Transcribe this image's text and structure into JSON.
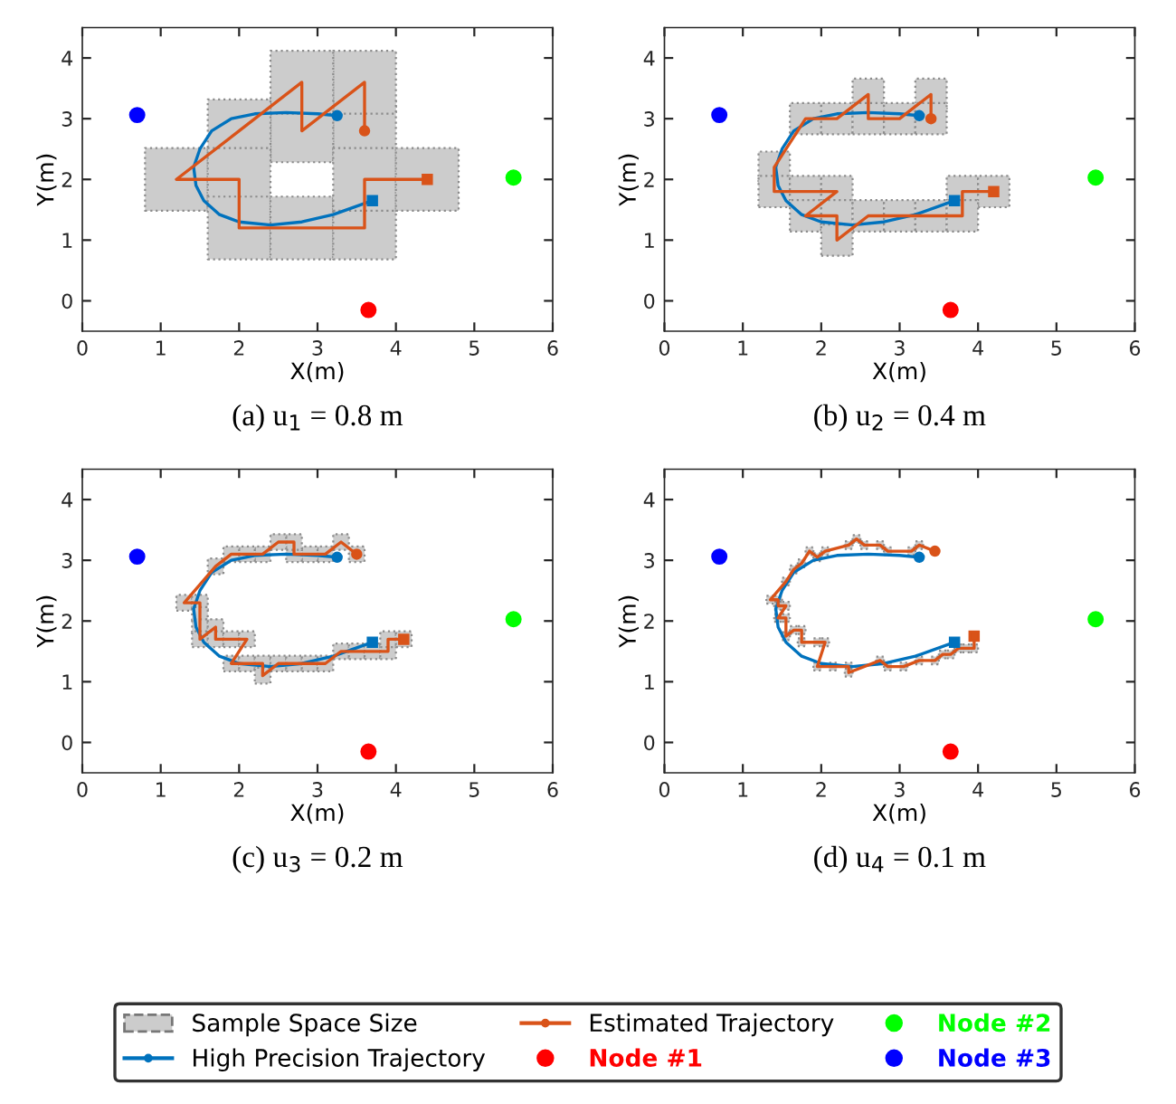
{
  "chart_data": [
    {
      "type": "line",
      "title": "(a) u$_{1}$ = 0.8 m",
      "xlabel": "X(m)",
      "ylabel": "Y(m)",
      "xlim": [
        0,
        6
      ],
      "ylim": [
        -0.5,
        4.5
      ],
      "xticks": [
        0,
        1,
        2,
        3,
        4,
        5,
        6
      ],
      "yticks": [
        0,
        1,
        2,
        3,
        4
      ],
      "legend": "bottom",
      "series": [
        {
          "name": "Sample Space Size",
          "type": "bubble",
          "marker": "square",
          "color": "#cccccc",
          "x": [
            3.6,
            3.6,
            2.8,
            2.8,
            2.0,
            1.2,
            2.0,
            2.0,
            2.8,
            3.6,
            3.6,
            4.4
          ],
          "values": [
            2.8,
            3.6,
            2.8,
            3.6,
            2.8,
            2.0,
            2.0,
            1.2,
            1.2,
            1.2,
            2.0,
            2.0
          ],
          "sizes": [
            1,
            1,
            1,
            1,
            1,
            1,
            1,
            1,
            1,
            1,
            1,
            1
          ]
        },
        {
          "name": "High Precision Trajectory",
          "color": "#0072bd",
          "x": [
            3.25,
            3.0,
            2.6,
            2.2,
            1.9,
            1.65,
            1.5,
            1.42,
            1.45,
            1.55,
            1.75,
            2.0,
            2.4,
            2.8,
            3.2,
            3.7
          ],
          "values": [
            3.05,
            3.08,
            3.1,
            3.08,
            3.0,
            2.8,
            2.5,
            2.2,
            1.9,
            1.65,
            1.42,
            1.3,
            1.25,
            1.3,
            1.42,
            1.65
          ]
        },
        {
          "name": "Estimated Trajectory",
          "color": "#d95319",
          "x": [
            3.6,
            3.6,
            2.8,
            2.8,
            2.0,
            1.2,
            2.0,
            2.0,
            2.8,
            3.6,
            3.6,
            4.4
          ],
          "values": [
            2.8,
            3.6,
            2.8,
            3.6,
            2.8,
            2.0,
            2.0,
            1.2,
            1.2,
            1.2,
            2.0,
            2.0
          ]
        },
        {
          "name": "Node #1",
          "type": "scatter",
          "marker": "circle",
          "color": "#ff0000",
          "x": [
            3.65
          ],
          "values": [
            -0.15
          ]
        },
        {
          "name": "Node #2",
          "type": "scatter",
          "marker": "circle",
          "color": "#00ff00",
          "x": [
            5.5
          ],
          "values": [
            2.03
          ]
        },
        {
          "name": "Node #3",
          "type": "scatter",
          "marker": "circle",
          "color": "#0000ff",
          "x": [
            0.7
          ],
          "values": [
            3.06
          ]
        }
      ]
    },
    {
      "type": "line",
      "title": "(b) u$_{2}$ = 0.4 m",
      "xlabel": "X(m)",
      "ylabel": "Y(m)",
      "xlim": [
        0,
        6
      ],
      "ylim": [
        -0.5,
        4.5
      ],
      "xticks": [
        0,
        1,
        2,
        3,
        4,
        5,
        6
      ],
      "yticks": [
        0,
        1,
        2,
        3,
        4
      ],
      "series": [
        {
          "type": "bubble",
          "marker": "square",
          "color": "#cccccc",
          "x": [
            2.6,
            3.4,
            1.8,
            2.2,
            2.6,
            3.0,
            3.4,
            1.4,
            1.4,
            1.8,
            2.2,
            3.8,
            4.2,
            1.8,
            2.2,
            2.6,
            3.0,
            3.4,
            3.8,
            2.2
          ],
          "values": [
            3.4,
            3.4,
            3.0,
            3.0,
            3.0,
            3.0,
            3.0,
            2.2,
            1.8,
            1.8,
            1.8,
            1.8,
            1.8,
            1.4,
            1.4,
            1.4,
            1.4,
            1.4,
            1.4,
            1.0
          ],
          "sizes": [
            1,
            1,
            1,
            1,
            1,
            1,
            1,
            1,
            1,
            1,
            1,
            1,
            1,
            1,
            1,
            1,
            1,
            1,
            1,
            1
          ]
        },
        {
          "color": "#0072bd",
          "x": [
            3.25,
            3.0,
            2.6,
            2.2,
            1.9,
            1.65,
            1.5,
            1.42,
            1.45,
            1.55,
            1.75,
            2.0,
            2.4,
            2.8,
            3.2,
            3.7
          ],
          "values": [
            3.05,
            3.08,
            3.1,
            3.08,
            3.0,
            2.8,
            2.5,
            2.2,
            1.9,
            1.65,
            1.42,
            1.3,
            1.25,
            1.3,
            1.42,
            1.65
          ]
        },
        {
          "color": "#d95319",
          "x": [
            3.4,
            3.4,
            3.0,
            2.6,
            2.6,
            2.2,
            1.8,
            1.4,
            1.4,
            2.2,
            1.8,
            2.2,
            2.2,
            2.6,
            3.0,
            3.4,
            3.8,
            3.8,
            4.2
          ],
          "values": [
            3.0,
            3.4,
            3.0,
            3.0,
            3.4,
            3.0,
            3.0,
            2.2,
            1.8,
            1.8,
            1.4,
            1.4,
            1.0,
            1.4,
            1.4,
            1.4,
            1.4,
            1.8,
            1.8
          ]
        },
        {
          "type": "scatter",
          "marker": "circle",
          "color": "#ff0000",
          "x": [
            3.65
          ],
          "values": [
            -0.15
          ]
        },
        {
          "type": "scatter",
          "marker": "circle",
          "color": "#00ff00",
          "x": [
            5.5
          ],
          "values": [
            2.03
          ]
        },
        {
          "type": "scatter",
          "marker": "circle",
          "color": "#0000ff",
          "x": [
            0.7
          ],
          "values": [
            3.06
          ]
        }
      ]
    },
    {
      "type": "line",
      "title": "(c) u$_{3}$ = 0.2 m",
      "xlabel": "X(m)",
      "ylabel": "Y(m)",
      "xlim": [
        0,
        6
      ],
      "ylim": [
        -0.5,
        4.5
      ],
      "xticks": [
        0,
        1,
        2,
        3,
        4,
        5,
        6
      ],
      "yticks": [
        0,
        1,
        2,
        3,
        4
      ],
      "series": [
        {
          "type": "bubble",
          "marker": "square",
          "color": "#cccccc",
          "x": [
            3.5,
            3.3,
            3.1,
            2.9,
            2.7,
            2.7,
            2.5,
            2.3,
            2.1,
            1.9,
            1.7,
            1.3,
            1.5,
            1.5,
            1.5,
            1.5,
            1.7,
            1.7,
            1.9,
            2.1,
            1.9,
            2.1,
            2.3,
            2.3,
            2.5,
            2.7,
            2.9,
            3.1,
            3.3,
            3.5,
            3.7,
            3.9,
            3.9,
            4.1
          ],
          "values": [
            3.1,
            3.3,
            3.1,
            3.1,
            3.1,
            3.3,
            3.3,
            3.1,
            3.1,
            3.1,
            2.9,
            2.3,
            2.3,
            2.1,
            1.9,
            1.7,
            1.9,
            1.7,
            1.7,
            1.7,
            1.3,
            1.3,
            1.3,
            1.1,
            1.3,
            1.3,
            1.3,
            1.3,
            1.5,
            1.5,
            1.5,
            1.5,
            1.7,
            1.7
          ],
          "sizes": [
            1,
            1,
            1,
            1,
            1,
            1,
            1,
            1,
            1,
            1,
            1,
            1,
            1,
            1,
            1,
            1,
            1,
            1,
            1,
            1,
            1,
            1,
            1,
            1,
            1,
            1,
            1,
            1,
            1,
            1,
            1,
            1,
            1,
            1
          ]
        },
        {
          "color": "#0072bd",
          "x": [
            3.25,
            3.0,
            2.6,
            2.2,
            1.9,
            1.65,
            1.5,
            1.42,
            1.45,
            1.55,
            1.75,
            2.0,
            2.4,
            2.8,
            3.2,
            3.7
          ],
          "values": [
            3.05,
            3.08,
            3.1,
            3.08,
            3.0,
            2.8,
            2.5,
            2.2,
            1.9,
            1.65,
            1.42,
            1.3,
            1.25,
            1.3,
            1.42,
            1.65
          ]
        },
        {
          "color": "#d95319",
          "x": [
            3.5,
            3.3,
            3.1,
            2.7,
            2.7,
            2.5,
            2.3,
            1.9,
            1.7,
            1.3,
            1.5,
            1.5,
            1.7,
            1.7,
            2.1,
            1.9,
            2.3,
            2.3,
            2.5,
            3.1,
            3.3,
            3.9,
            3.9,
            4.1
          ],
          "values": [
            3.1,
            3.3,
            3.1,
            3.1,
            3.3,
            3.3,
            3.1,
            3.1,
            2.9,
            2.3,
            2.3,
            1.7,
            1.9,
            1.7,
            1.7,
            1.3,
            1.3,
            1.1,
            1.3,
            1.3,
            1.5,
            1.5,
            1.7,
            1.7
          ]
        },
        {
          "type": "scatter",
          "marker": "circle",
          "color": "#ff0000",
          "x": [
            3.65
          ],
          "values": [
            -0.15
          ]
        },
        {
          "type": "scatter",
          "marker": "circle",
          "color": "#00ff00",
          "x": [
            5.5
          ],
          "values": [
            2.03
          ]
        },
        {
          "type": "scatter",
          "marker": "circle",
          "color": "#0000ff",
          "x": [
            0.7
          ],
          "values": [
            3.06
          ]
        }
      ]
    },
    {
      "type": "line",
      "title": "(d) u$_{4}$ = 0.1 m",
      "xlabel": "X(m)",
      "ylabel": "Y(m)",
      "xlim": [
        0,
        6
      ],
      "ylim": [
        -0.5,
        4.5
      ],
      "xticks": [
        0,
        1,
        2,
        3,
        4,
        5,
        6
      ],
      "yticks": [
        0,
        1,
        2,
        3,
        4
      ],
      "series": [
        {
          "type": "bubble",
          "marker": "square",
          "color": "#cccccc",
          "x": [
            3.25,
            3.15,
            2.85,
            2.75,
            2.55,
            2.45,
            2.35,
            2.05,
            1.95,
            1.85,
            1.75,
            1.65,
            1.55,
            1.35,
            1.45,
            1.45,
            1.55,
            1.45,
            1.55,
            1.55,
            1.65,
            1.75,
            1.75,
            1.95,
            2.05,
            1.95,
            2.15,
            2.35,
            2.35,
            2.75,
            2.85,
            3.05,
            3.25,
            3.45,
            3.55,
            3.65,
            3.75,
            3.85,
            3.95
          ],
          "values": [
            3.25,
            3.15,
            3.15,
            3.25,
            3.25,
            3.35,
            3.25,
            3.15,
            3.05,
            3.15,
            2.95,
            2.85,
            2.65,
            2.35,
            2.35,
            2.25,
            2.25,
            2.05,
            2.05,
            1.75,
            1.85,
            1.85,
            1.65,
            1.65,
            1.65,
            1.25,
            1.25,
            1.25,
            1.15,
            1.35,
            1.25,
            1.25,
            1.35,
            1.35,
            1.45,
            1.45,
            1.55,
            1.55,
            1.55
          ],
          "sizes": [
            1,
            1,
            1,
            1,
            1,
            1,
            1,
            1,
            1,
            1,
            1,
            1,
            1,
            1,
            1,
            1,
            1,
            1,
            1,
            1,
            1,
            1,
            1,
            1,
            1,
            1,
            1,
            1,
            1,
            1,
            1,
            1,
            1,
            1,
            1,
            1,
            1,
            1,
            1
          ]
        },
        {
          "color": "#0072bd",
          "x": [
            3.25,
            3.0,
            2.6,
            2.2,
            1.9,
            1.65,
            1.5,
            1.42,
            1.45,
            1.55,
            1.75,
            2.0,
            2.4,
            2.8,
            3.2,
            3.7
          ],
          "values": [
            3.05,
            3.08,
            3.1,
            3.08,
            3.0,
            2.8,
            2.5,
            2.2,
            1.9,
            1.65,
            1.42,
            1.3,
            1.25,
            1.3,
            1.42,
            1.65
          ]
        },
        {
          "color": "#d95319",
          "x": [
            3.45,
            3.25,
            3.15,
            2.85,
            2.75,
            2.55,
            2.45,
            2.35,
            2.05,
            1.95,
            1.85,
            1.75,
            1.65,
            1.55,
            1.35,
            1.45,
            1.45,
            1.55,
            1.45,
            1.55,
            1.55,
            1.65,
            1.75,
            1.75,
            1.95,
            2.05,
            1.95,
            2.15,
            2.35,
            2.35,
            2.75,
            2.85,
            3.05,
            3.25,
            3.45,
            3.55,
            3.65,
            3.75,
            3.85,
            3.95,
            3.95
          ],
          "values": [
            3.15,
            3.25,
            3.15,
            3.15,
            3.25,
            3.25,
            3.35,
            3.25,
            3.15,
            3.05,
            3.15,
            2.95,
            2.85,
            2.65,
            2.35,
            2.35,
            2.25,
            2.25,
            2.05,
            2.05,
            1.75,
            1.85,
            1.85,
            1.65,
            1.65,
            1.65,
            1.25,
            1.25,
            1.25,
            1.15,
            1.35,
            1.25,
            1.25,
            1.35,
            1.35,
            1.45,
            1.45,
            1.55,
            1.55,
            1.55,
            1.75
          ]
        },
        {
          "type": "scatter",
          "marker": "circle",
          "color": "#ff0000",
          "x": [
            3.65
          ],
          "values": [
            -0.15
          ]
        },
        {
          "type": "scatter",
          "marker": "circle",
          "color": "#00ff00",
          "x": [
            5.5
          ],
          "values": [
            2.03
          ]
        },
        {
          "type": "scatter",
          "marker": "circle",
          "color": "#0000ff",
          "x": [
            0.7
          ],
          "values": [
            3.06
          ]
        }
      ]
    }
  ]
}
